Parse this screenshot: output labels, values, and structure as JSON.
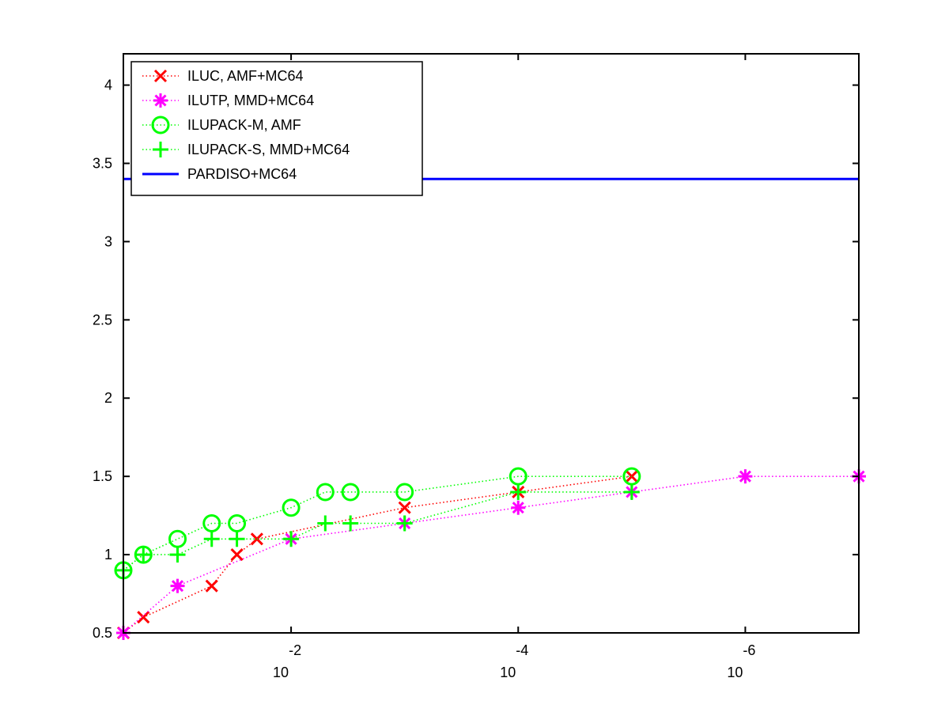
{
  "chart_data": {
    "type": "line",
    "x_scale": "log",
    "x_direction": "decreasing",
    "xlim": [
      0.3,
      1e-07
    ],
    "ylim": [
      0.5,
      4.2
    ],
    "grid": false,
    "legend_position": "top-left",
    "x_ticks": [
      {
        "value": 0.01,
        "base": "10",
        "exponent": "-2"
      },
      {
        "value": 0.0001,
        "base": "10",
        "exponent": "-4"
      },
      {
        "value": 1e-06,
        "base": "10",
        "exponent": "-6"
      }
    ],
    "y_ticks": [
      {
        "value": 0.5,
        "label": "0.5"
      },
      {
        "value": 1,
        "label": "1"
      },
      {
        "value": 1.5,
        "label": "1.5"
      },
      {
        "value": 2,
        "label": "2"
      },
      {
        "value": 2.5,
        "label": "2.5"
      },
      {
        "value": 3,
        "label": "3"
      },
      {
        "value": 3.5,
        "label": "3.5"
      },
      {
        "value": 4,
        "label": "4"
      }
    ],
    "series": [
      {
        "name": "ILUC, AMF+MC64",
        "color": "#ff0000",
        "marker": "x",
        "line_style": "dotted",
        "x": [
          0.3,
          0.2,
          0.05,
          0.03,
          0.02,
          0.001,
          0.0001,
          1e-05
        ],
        "y": [
          0.5,
          0.6,
          0.8,
          1.0,
          1.1,
          1.3,
          1.4,
          1.5
        ]
      },
      {
        "name": "ILUTP, MMD+MC64",
        "color": "#ff00ff",
        "marker": "asterisk",
        "line_style": "dotted",
        "x": [
          0.3,
          0.1,
          0.01,
          0.001,
          0.0001,
          1e-05,
          1e-06,
          1e-07
        ],
        "y": [
          0.5,
          0.8,
          1.1,
          1.2,
          1.3,
          1.4,
          1.5,
          1.5
        ]
      },
      {
        "name": "ILUPACK-M, AMF",
        "color": "#00ff00",
        "marker": "circle",
        "line_style": "dotted",
        "x": [
          0.3,
          0.2,
          0.1,
          0.05,
          0.03,
          0.01,
          0.005,
          0.003,
          0.001,
          0.0001,
          1e-05
        ],
        "y": [
          0.9,
          1.0,
          1.1,
          1.2,
          1.2,
          1.3,
          1.4,
          1.4,
          1.4,
          1.5,
          1.5
        ]
      },
      {
        "name": "ILUPACK-S, MMD+MC64",
        "color": "#00ff00",
        "marker": "plus",
        "line_style": "dotted",
        "x": [
          0.3,
          0.2,
          0.1,
          0.05,
          0.03,
          0.01,
          0.005,
          0.003,
          0.001,
          0.0001,
          1e-05
        ],
        "y": [
          0.9,
          1.0,
          1.0,
          1.1,
          1.1,
          1.1,
          1.2,
          1.2,
          1.2,
          1.4,
          1.4
        ]
      },
      {
        "name": "PARDISO+MC64",
        "color": "#0000ff",
        "marker": "none",
        "line_style": "solid",
        "x": [
          0.3,
          1e-07
        ],
        "y": [
          3.4,
          3.4
        ]
      }
    ]
  }
}
